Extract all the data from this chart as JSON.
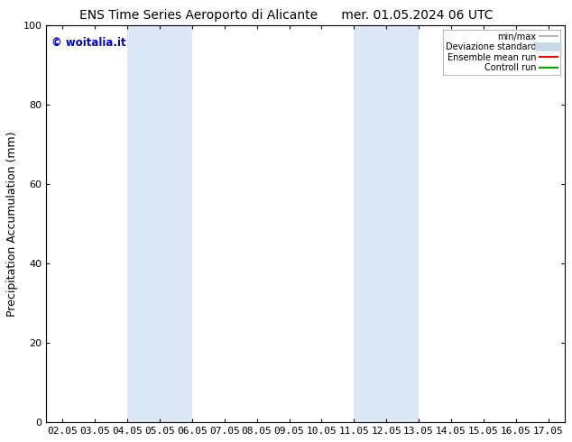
{
  "title_left": "ENS Time Series Aeroporto di Alicante",
  "title_right": "mer. 01.05.2024 06 UTC",
  "ylabel": "Precipitation Accumulation (mm)",
  "xlim": [
    1.55,
    17.55
  ],
  "ylim": [
    0,
    100
  ],
  "yticks": [
    0,
    20,
    40,
    60,
    80,
    100
  ],
  "xtick_labels": [
    "02.05",
    "03.05",
    "04.05",
    "05.05",
    "06.05",
    "07.05",
    "08.05",
    "09.05",
    "10.05",
    "11.05",
    "12.05",
    "13.05",
    "14.05",
    "15.05",
    "16.05",
    "17.05"
  ],
  "xtick_positions": [
    2.05,
    3.05,
    4.05,
    5.05,
    6.05,
    7.05,
    8.05,
    9.05,
    10.05,
    11.05,
    12.05,
    13.05,
    14.05,
    15.05,
    16.05,
    17.05
  ],
  "shaded_bands": [
    {
      "xmin": 4.05,
      "xmax": 6.05,
      "color": "#dce8f5"
    },
    {
      "xmin": 11.05,
      "xmax": 13.05,
      "color": "#dce8f5"
    }
  ],
  "watermark_text": "© woitalia.it",
  "watermark_color": "#0000cc",
  "legend_entries": [
    {
      "label": "min/max",
      "color": "#aaaaaa",
      "lw": 1.2
    },
    {
      "label": "Deviazione standard",
      "color": "#c8daea",
      "lw": 7
    },
    {
      "label": "Ensemble mean run",
      "color": "#ff0000",
      "lw": 1.5
    },
    {
      "label": "Controll run",
      "color": "#00aa00",
      "lw": 1.5
    }
  ],
  "background_color": "#ffffff",
  "title_fontsize": 10,
  "tick_fontsize": 8,
  "ylabel_fontsize": 9
}
